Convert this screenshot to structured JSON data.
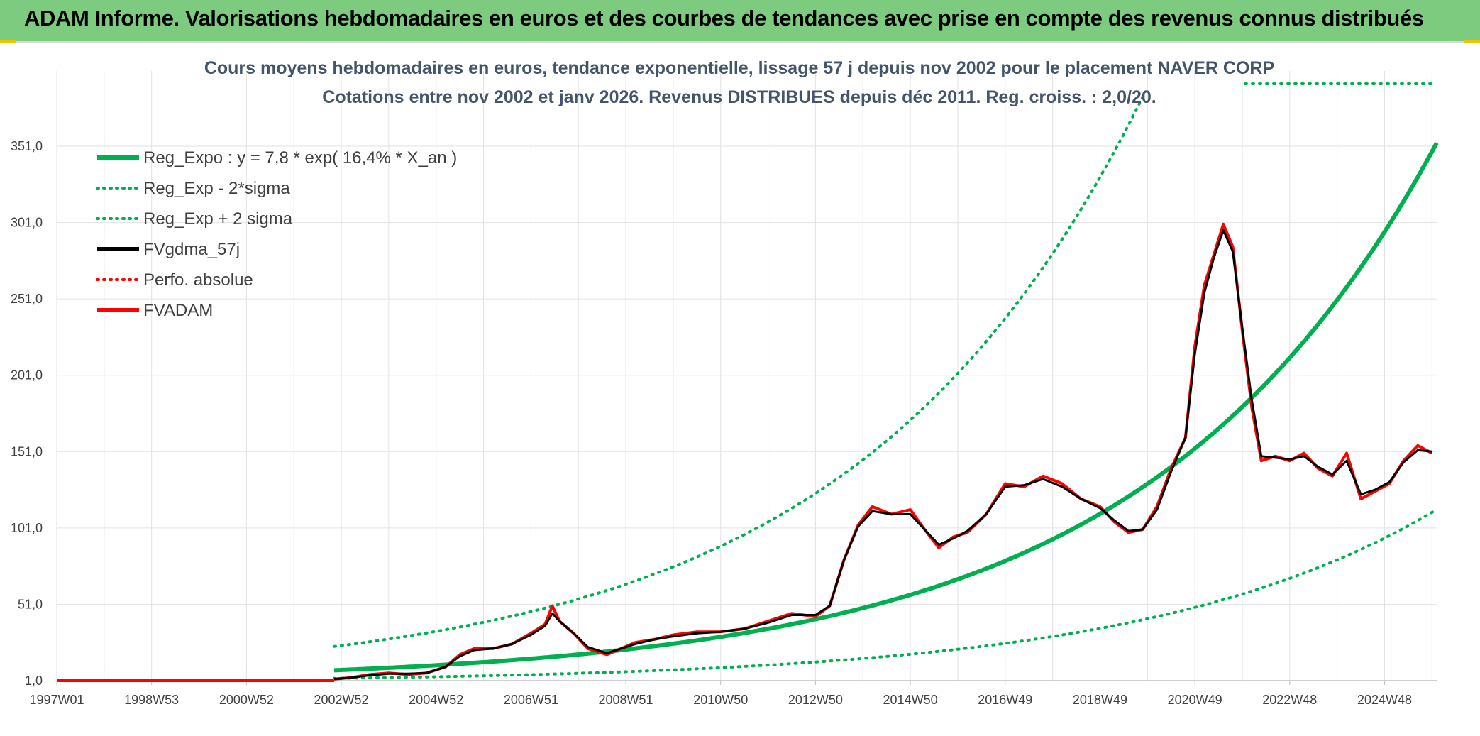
{
  "header": {
    "title": "ADAM Informe. Valorisations hebdomadaires en euros et des courbes de tendances avec prise en compte des revenus connus distribués",
    "background_color": "#7dcb7f"
  },
  "chart_data": {
    "type": "line",
    "title": "Cours moyens hebdomadaires en euros, tendance exponentielle, lissage 57 j depuis nov 2002 pour le placement NAVER CORP",
    "subtitle": "Cotations entre nov 2002 et janv 2026. Revenus DISTRIBUES depuis déc 2011. Reg. croiss. : 2,0/20.",
    "xlabel": "",
    "ylabel": "",
    "x_range": [
      1997.0,
      2026.1
    ],
    "ylim": [
      1,
      391
    ],
    "grid": true,
    "legend_position": "top-left",
    "y_ticks": [
      "1,0",
      "51,0",
      "101,0",
      "151,0",
      "201,0",
      "251,0",
      "301,0",
      "351,0"
    ],
    "y_tick_values": [
      1,
      51,
      101,
      151,
      201,
      251,
      301,
      351
    ],
    "x_ticks": [
      "1997W01",
      "1998W53",
      "2000W52",
      "2002W52",
      "2004W52",
      "2006W51",
      "2008W51",
      "2010W50",
      "2012W50",
      "2014W50",
      "2016W49",
      "2018W49",
      "2020W49",
      "2022W48",
      "2024W48"
    ],
    "x_tick_values": [
      1997.0,
      1999.0,
      2001.0,
      2003.0,
      2005.0,
      2007.0,
      2009.0,
      2011.0,
      2013.0,
      2015.0,
      2017.0,
      2019.0,
      2021.0,
      2023.0,
      2025.0
    ],
    "regression": {
      "a": 7.8,
      "rate": 0.164,
      "start_year": 2002.85,
      "sigma_low_factor": 0.32,
      "sigma_high_factor": 3.0
    },
    "series": [
      {
        "name": "Reg_Expo : y = 7,8 * exp( 16,4% *  X_an )",
        "color": "#00b050",
        "style": "solid",
        "width": 6
      },
      {
        "name": "Reg_Exp - 2*sigma",
        "color": "#00b050",
        "style": "dotted",
        "width": 4
      },
      {
        "name": "Reg_Exp + 2 sigma",
        "color": "#00b050",
        "style": "dotted",
        "width": 4
      },
      {
        "name": "FVgdma_57j",
        "color": "#000000",
        "style": "solid",
        "width": 3
      },
      {
        "name": "Perfo. absolue",
        "color": "#ff0000",
        "style": "dotted",
        "width": 3
      },
      {
        "name": "FVADAM",
        "color": "#ff0000",
        "style": "solid",
        "width": 4
      }
    ],
    "flat_before": {
      "x": [
        1997.0,
        2002.85
      ],
      "y": 1.0
    },
    "price_points": {
      "x": [
        2002.85,
        2003.2,
        2003.6,
        2004.0,
        2004.4,
        2004.8,
        2005.2,
        2005.5,
        2005.8,
        2006.2,
        2006.6,
        2007.0,
        2007.3,
        2007.45,
        2007.6,
        2007.9,
        2008.2,
        2008.6,
        2008.9,
        2009.2,
        2009.6,
        2010.0,
        2010.5,
        2011.0,
        2011.5,
        2012.0,
        2012.5,
        2013.0,
        2013.3,
        2013.6,
        2013.9,
        2014.2,
        2014.6,
        2015.0,
        2015.3,
        2015.6,
        2015.9,
        2016.2,
        2016.6,
        2017.0,
        2017.4,
        2017.8,
        2018.2,
        2018.6,
        2019.0,
        2019.3,
        2019.6,
        2019.9,
        2020.2,
        2020.5,
        2020.8,
        2021.0,
        2021.2,
        2021.4,
        2021.6,
        2021.8,
        2022.0,
        2022.2,
        2022.4,
        2022.7,
        2023.0,
        2023.3,
        2023.6,
        2023.9,
        2024.2,
        2024.5,
        2024.8,
        2025.1,
        2025.4,
        2025.7,
        2026.0
      ],
      "y": [
        2,
        3,
        5,
        6,
        5,
        6,
        10,
        18,
        22,
        22,
        25,
        32,
        38,
        50,
        40,
        32,
        22,
        18,
        22,
        26,
        28,
        31,
        33,
        33,
        35,
        40,
        45,
        43,
        50,
        80,
        103,
        115,
        110,
        113,
        100,
        88,
        95,
        98,
        110,
        130,
        128,
        135,
        130,
        120,
        115,
        105,
        98,
        100,
        115,
        140,
        160,
        220,
        260,
        280,
        300,
        285,
        230,
        180,
        145,
        148,
        145,
        150,
        140,
        135,
        150,
        120,
        125,
        130,
        145,
        155,
        150
      ],
      "smooth": [
        2,
        3,
        4.5,
        5.5,
        5.5,
        6,
        10,
        17,
        21,
        22,
        25,
        31,
        37,
        45,
        40,
        32,
        23,
        19,
        22,
        25,
        28,
        30,
        32,
        33,
        35,
        39,
        44,
        44,
        50,
        80,
        102,
        112,
        110,
        110,
        100,
        90,
        94,
        99,
        110,
        128,
        129,
        133,
        128,
        120,
        114,
        106,
        99,
        100,
        113,
        138,
        160,
        215,
        255,
        278,
        296,
        282,
        232,
        185,
        148,
        147,
        146,
        148,
        141,
        136,
        145,
        123,
        126,
        131,
        144,
        152,
        151
      ]
    }
  }
}
